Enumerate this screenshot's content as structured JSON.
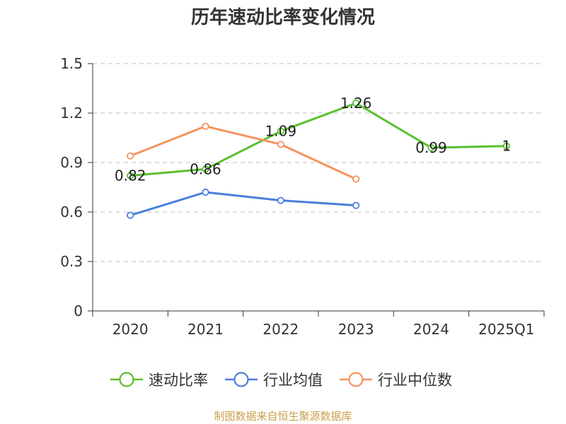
{
  "chart_data": {
    "type": "line",
    "title": "历年速动比率变化情况",
    "categories": [
      "2020",
      "2021",
      "2022",
      "2023",
      "2024",
      "2025Q1"
    ],
    "ylim": [
      0,
      1.5
    ],
    "yticks": [
      "0",
      "0.3",
      "0.6",
      "0.9",
      "1.2",
      "1.5"
    ],
    "grid": true,
    "legend_position": "bottom",
    "series": [
      {
        "name": "速动比率",
        "color": "#5ac02e",
        "values": [
          0.82,
          0.86,
          1.09,
          1.26,
          0.99,
          1.0
        ],
        "labels": [
          "0.82",
          "0.86",
          "1.09",
          "1.26",
          "0.99",
          "1"
        ]
      },
      {
        "name": "行业均值",
        "color": "#4a7fdc",
        "values": [
          0.58,
          0.72,
          0.67,
          0.64,
          null,
          null
        ]
      },
      {
        "name": "行业中位数",
        "color": "#f5925e",
        "values": [
          0.94,
          1.12,
          1.01,
          0.8,
          null,
          null
        ]
      }
    ]
  },
  "footer": {
    "source": "制图数据来自恒生聚源数据库"
  }
}
